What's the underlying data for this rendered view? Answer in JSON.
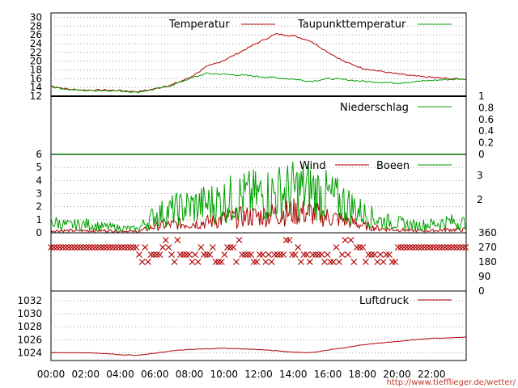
{
  "url_text": "http://www.tiefflieger.de/wetter/",
  "x_ticks": [
    "00:00",
    "02:00",
    "04:00",
    "06:00",
    "08:00",
    "10:00",
    "12:00",
    "14:00",
    "16:00",
    "18:00",
    "20:00",
    "22:00"
  ],
  "colors": {
    "red": "#b00000",
    "green": "#00a000",
    "grid": "#999999"
  },
  "chart_data": [
    {
      "type": "line",
      "panel": "temperature",
      "ylim": [
        12,
        31
      ],
      "y_ticks": [
        12,
        14,
        16,
        18,
        20,
        22,
        24,
        26,
        28,
        30
      ],
      "grid": true,
      "legend_placement": "top",
      "x_hours": [
        0,
        1,
        2,
        3,
        4,
        5,
        6,
        7,
        8,
        9,
        10,
        11,
        12,
        13,
        14,
        15,
        16,
        17,
        18,
        19,
        20,
        21,
        22,
        23,
        24
      ],
      "series": [
        {
          "name": "Temperatur",
          "color": "#b00000",
          "values": [
            14.3,
            13.6,
            13.4,
            13.4,
            13.3,
            13.0,
            13.7,
            14.6,
            16.2,
            18.7,
            20.2,
            22.2,
            24.3,
            26.2,
            25.8,
            24.6,
            22.1,
            19.8,
            18.4,
            17.7,
            17.1,
            16.6,
            16.3,
            16.0,
            15.9
          ]
        },
        {
          "name": "Taupunkttemperatur",
          "color": "#00a000",
          "values": [
            14.2,
            13.5,
            13.3,
            13.3,
            13.2,
            12.9,
            13.6,
            14.5,
            16.0,
            17.2,
            17.0,
            16.8,
            16.5,
            16.2,
            15.9,
            15.4,
            16.0,
            15.8,
            15.4,
            15.2,
            15.0,
            15.3,
            15.6,
            15.8,
            15.9
          ]
        }
      ]
    },
    {
      "type": "line",
      "panel": "precipitation",
      "ylim": [
        0,
        1
      ],
      "y_ticks": [
        0,
        0.2,
        0.4,
        0.6,
        0.8,
        1
      ],
      "legend_placement": "top-right",
      "series": [
        {
          "name": "Niederschlag",
          "color": "#00a000",
          "values": [
            0,
            0,
            0,
            0,
            0,
            0,
            0,
            0,
            0,
            0,
            0,
            0,
            0,
            0,
            0,
            0,
            0,
            0,
            0,
            0,
            0,
            0,
            0,
            0,
            0
          ]
        }
      ]
    },
    {
      "type": "line",
      "panel": "wind",
      "ylim": [
        0,
        6
      ],
      "y_ticks": [
        0,
        1,
        2,
        3,
        4,
        5,
        6
      ],
      "grid": true,
      "right_labels": [
        "2",
        "3"
      ],
      "legend_placement": "top-right",
      "x_hours": [
        0,
        1,
        2,
        3,
        4,
        5,
        6,
        7,
        8,
        9,
        10,
        11,
        12,
        13,
        14,
        15,
        16,
        17,
        18,
        19,
        20,
        21,
        22,
        23,
        24
      ],
      "series": [
        {
          "name": "Wind",
          "color": "#b00000",
          "values": [
            0.2,
            0.2,
            0.2,
            0.2,
            0.2,
            0.1,
            0.6,
            0.8,
            0.9,
            1.0,
            1.3,
            1.5,
            1.6,
            1.8,
            2.0,
            1.9,
            1.5,
            1.2,
            0.7,
            0.4,
            0.3,
            0.2,
            0.2,
            0.3,
            0.3
          ]
        },
        {
          "name": "Boeen",
          "color": "#00a000",
          "values": [
            0.9,
            0.6,
            0.7,
            0.5,
            0.4,
            0.3,
            1.4,
            1.8,
            2.1,
            2.3,
            2.6,
            2.9,
            3.0,
            3.2,
            3.4,
            3.5,
            2.9,
            2.4,
            1.6,
            1.0,
            0.8,
            0.6,
            0.7,
            0.9,
            0.8
          ]
        }
      ]
    },
    {
      "type": "scatter",
      "panel": "wind_direction",
      "ylim": [
        0,
        360
      ],
      "y_ticks": [
        0,
        90,
        180,
        270,
        360
      ],
      "x_hours": [
        0,
        1,
        2,
        3,
        4,
        5,
        5.5,
        6,
        7,
        8,
        9,
        10,
        11,
        12,
        13,
        14,
        15,
        16,
        17,
        18,
        19,
        20,
        21,
        22,
        23,
        24
      ],
      "series": [
        {
          "name": "",
          "color": "#b00000",
          "values": [
            270,
            270,
            270,
            270,
            270,
            270,
            180,
            225,
            200,
            225,
            200,
            225,
            225,
            225,
            225,
            270,
            225,
            270,
            270,
            225,
            270,
            270,
            270,
            225,
            225,
            225
          ]
        }
      ]
    },
    {
      "type": "line",
      "panel": "pressure",
      "ylim": [
        1022.8,
        1033.5
      ],
      "y_ticks": [
        1024,
        1026,
        1028,
        1030,
        1032
      ],
      "grid": true,
      "legend_placement": "top-right",
      "x_hours": [
        0,
        1,
        2,
        3,
        4,
        5,
        6,
        7,
        8,
        9,
        10,
        11,
        12,
        13,
        14,
        15,
        16,
        17,
        18,
        19,
        20,
        21,
        22,
        23,
        24
      ],
      "series": [
        {
          "name": "Luftdruck",
          "color": "#b00000",
          "values": [
            1024.0,
            1024.0,
            1024.0,
            1023.9,
            1023.7,
            1023.6,
            1023.9,
            1024.3,
            1024.5,
            1024.6,
            1024.7,
            1024.6,
            1024.5,
            1024.3,
            1024.1,
            1024.0,
            1024.4,
            1024.8,
            1025.2,
            1025.5,
            1025.7,
            1026.0,
            1026.2,
            1026.3,
            1026.4
          ]
        }
      ]
    }
  ]
}
